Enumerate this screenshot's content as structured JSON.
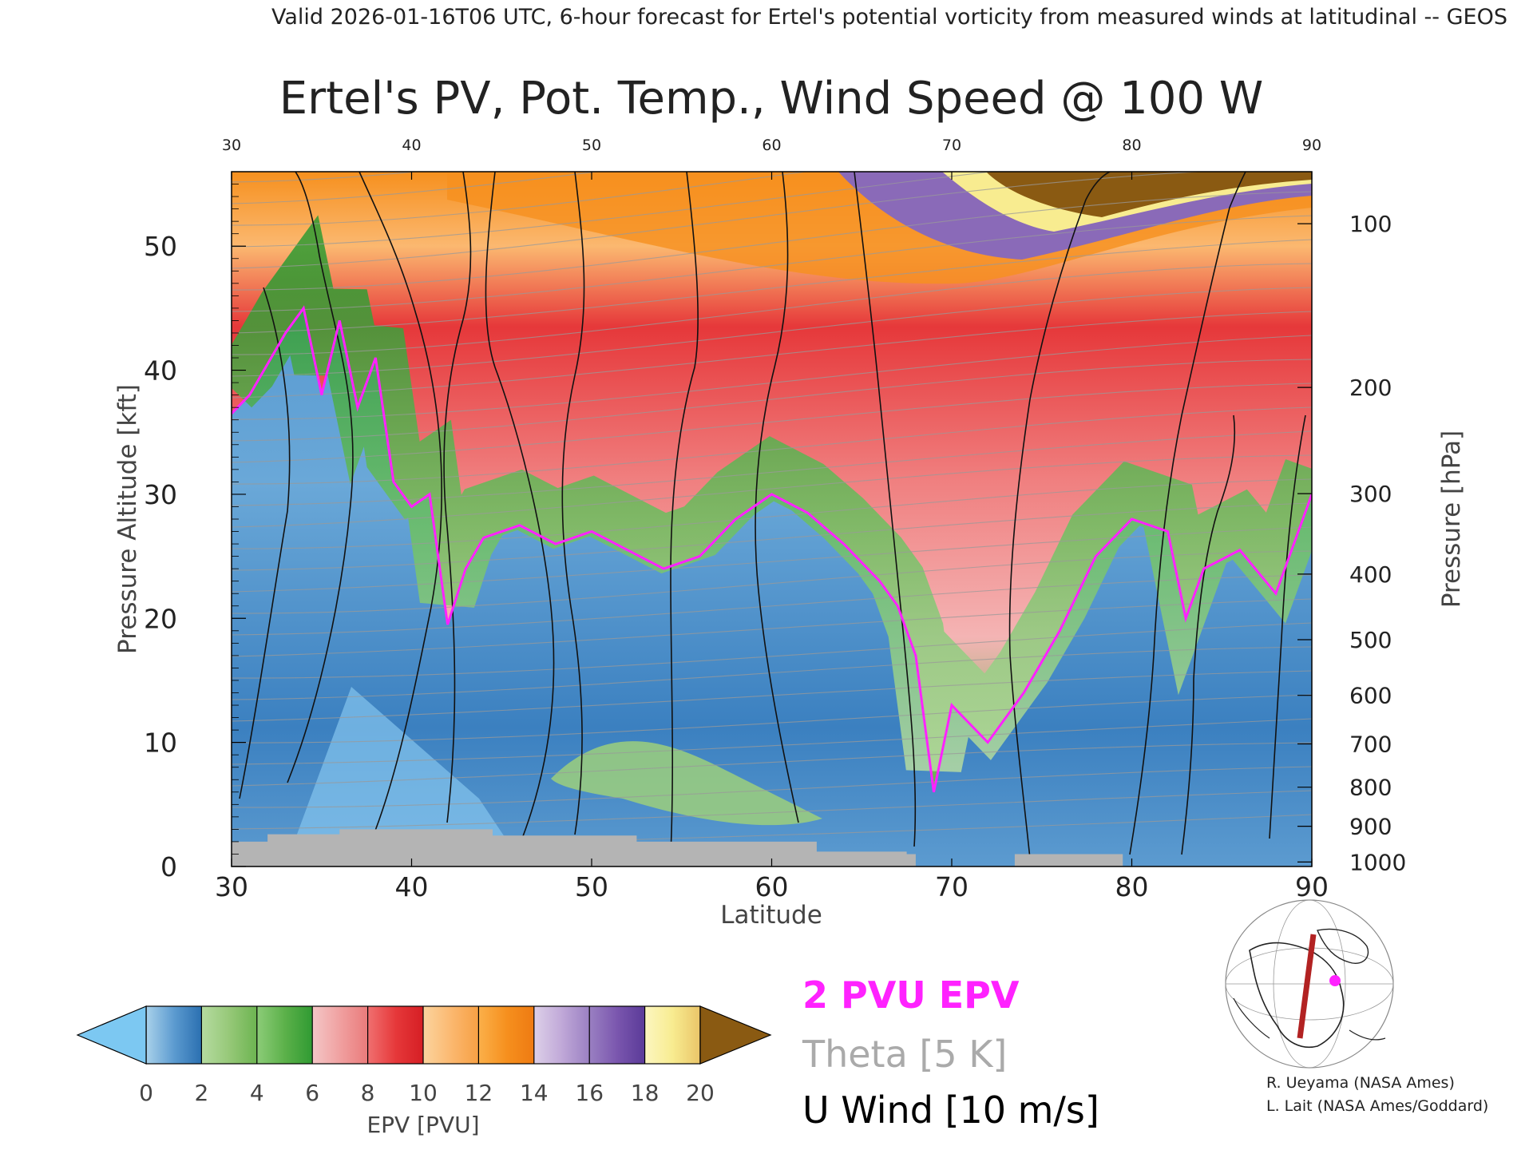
{
  "header": "Valid 2026-01-16T06 UTC, 6-hour forecast for Ertel's potential vorticity from measured winds at latitudinal -- GEOS",
  "chart_data": {
    "type": "heatmap",
    "title": "Ertel's PV, Pot. Temp., Wind Speed @ 100 W",
    "xlabel": "Latitude",
    "ylabel": "Pressure Altitude [kft]",
    "y2label": "Pressure [hPa]",
    "xlim": [
      30,
      90
    ],
    "ylim": [
      0,
      56
    ],
    "x_ticks": [
      30,
      40,
      50,
      60,
      70,
      80,
      90
    ],
    "x_tick_labels": [
      "30",
      "40",
      "50",
      "60",
      "70",
      "80",
      "90"
    ],
    "top_ticks": [
      "30",
      "40",
      "50",
      "60",
      "70",
      "80",
      "90"
    ],
    "y_ticks": [
      0,
      10,
      20,
      30,
      40,
      50
    ],
    "y_tick_labels": [
      "0",
      "10",
      "20",
      "30",
      "40",
      "50"
    ],
    "pressure_ticks": [
      {
        "hPa": 100,
        "label": "100"
      },
      {
        "hPa": 200,
        "label": "200"
      },
      {
        "hPa": 300,
        "label": "300"
      },
      {
        "hPa": 400,
        "label": "400"
      },
      {
        "hPa": 500,
        "label": "500"
      },
      {
        "hPa": 600,
        "label": "600"
      },
      {
        "hPa": 700,
        "label": "700"
      },
      {
        "hPa": 800,
        "label": "800"
      },
      {
        "hPa": 900,
        "label": "900"
      },
      {
        "hPa": 1000,
        "label": "1000"
      }
    ],
    "colorbar": {
      "label": "EPV [PVU]",
      "ticks": [
        {
          "value": 0,
          "label": "0"
        },
        {
          "value": 2,
          "label": "2"
        },
        {
          "value": 4,
          "label": "4"
        },
        {
          "value": 6,
          "label": "6"
        },
        {
          "value": 8,
          "label": "8"
        },
        {
          "value": 10,
          "label": "10"
        },
        {
          "value": 12,
          "label": "12"
        },
        {
          "value": 14,
          "label": "14"
        },
        {
          "value": 16,
          "label": "16"
        },
        {
          "value": 18,
          "label": "18"
        },
        {
          "value": 20,
          "label": "20"
        }
      ],
      "under_color": "#7cc8f2",
      "over_color": "#8a5a12",
      "bins": [
        {
          "from": 0,
          "to": 1,
          "c0": "#a9d1ea",
          "c1": "#5c9bd0"
        },
        {
          "from": 1,
          "to": 2,
          "c0": "#5c9bd0",
          "c1": "#2a6fb0"
        },
        {
          "from": 2,
          "to": 3,
          "c0": "#b5dba0",
          "c1": "#96c878"
        },
        {
          "from": 3,
          "to": 4,
          "c0": "#96c878",
          "c1": "#6cb450"
        },
        {
          "from": 4,
          "to": 5,
          "c0": "#8ccc78",
          "c1": "#5cb14a"
        },
        {
          "from": 5,
          "to": 6,
          "c0": "#5cb14a",
          "c1": "#2f9a32"
        },
        {
          "from": 6,
          "to": 7,
          "c0": "#f4c6c6",
          "c1": "#f0a0a0"
        },
        {
          "from": 7,
          "to": 8,
          "c0": "#f0a0a0",
          "c1": "#ea7a7a"
        },
        {
          "from": 8,
          "to": 9,
          "c0": "#f07070",
          "c1": "#e6383a"
        },
        {
          "from": 9,
          "to": 10,
          "c0": "#e6383a",
          "c1": "#d51e24"
        },
        {
          "from": 10,
          "to": 11,
          "c0": "#fbd49e",
          "c1": "#fbb870"
        },
        {
          "from": 11,
          "to": 12,
          "c0": "#fbb870",
          "c1": "#f7a043"
        },
        {
          "from": 12,
          "to": 13,
          "c0": "#fbb04a",
          "c1": "#f6901e"
        },
        {
          "from": 13,
          "to": 14,
          "c0": "#f6901e",
          "c1": "#ee7a12"
        },
        {
          "from": 14,
          "to": 15,
          "c0": "#ddd0e8",
          "c1": "#c0a8d8"
        },
        {
          "from": 15,
          "to": 16,
          "c0": "#c0a8d8",
          "c1": "#9a80c2"
        },
        {
          "from": 16,
          "to": 17,
          "c0": "#9a80c2",
          "c1": "#7a56ae"
        },
        {
          "from": 17,
          "to": 18,
          "c0": "#7a56ae",
          "c1": "#5a3a98"
        },
        {
          "from": 18,
          "to": 19,
          "c0": "#fcf6c0",
          "c1": "#f8ec90"
        },
        {
          "from": 19,
          "to": 20,
          "c0": "#f8ec90",
          "c1": "#eac468"
        }
      ]
    },
    "legend": [
      {
        "label": "2 PVU EPV",
        "color": "#ff22ff"
      },
      {
        "label": "Theta [5 K]",
        "color": "#aaaaaa"
      },
      {
        "label": "U Wind [10 m/s]",
        "color": "#000000"
      }
    ],
    "tropopause_2pvu_kft": [
      {
        "lat": 30,
        "kft": 36.5
      },
      {
        "lat": 31,
        "kft": 38
      },
      {
        "lat": 33,
        "kft": 43
      },
      {
        "lat": 34,
        "kft": 45
      },
      {
        "lat": 35,
        "kft": 38
      },
      {
        "lat": 36,
        "kft": 44
      },
      {
        "lat": 37,
        "kft": 37
      },
      {
        "lat": 38,
        "kft": 41
      },
      {
        "lat": 39,
        "kft": 31
      },
      {
        "lat": 40,
        "kft": 29
      },
      {
        "lat": 41,
        "kft": 30
      },
      {
        "lat": 42,
        "kft": 19.5
      },
      {
        "lat": 43,
        "kft": 24
      },
      {
        "lat": 44,
        "kft": 26.5
      },
      {
        "lat": 46,
        "kft": 27.5
      },
      {
        "lat": 48,
        "kft": 26
      },
      {
        "lat": 50,
        "kft": 27
      },
      {
        "lat": 52,
        "kft": 25.5
      },
      {
        "lat": 54,
        "kft": 24
      },
      {
        "lat": 56,
        "kft": 25
      },
      {
        "lat": 58,
        "kft": 28
      },
      {
        "lat": 60,
        "kft": 30
      },
      {
        "lat": 62,
        "kft": 28.5
      },
      {
        "lat": 64,
        "kft": 26
      },
      {
        "lat": 66,
        "kft": 23
      },
      {
        "lat": 67,
        "kft": 21
      },
      {
        "lat": 68,
        "kft": 17
      },
      {
        "lat": 69,
        "kft": 6
      },
      {
        "lat": 70,
        "kft": 13
      },
      {
        "lat": 72,
        "kft": 10
      },
      {
        "lat": 74,
        "kft": 14
      },
      {
        "lat": 76,
        "kft": 19
      },
      {
        "lat": 78,
        "kft": 25
      },
      {
        "lat": 80,
        "kft": 28
      },
      {
        "lat": 82,
        "kft": 27
      },
      {
        "lat": 83,
        "kft": 20
      },
      {
        "lat": 84,
        "kft": 24
      },
      {
        "lat": 86,
        "kft": 25.5
      },
      {
        "lat": 88,
        "kft": 22
      },
      {
        "lat": 90,
        "kft": 30
      }
    ]
  },
  "credits": [
    "R. Ueyama (NASA Ames)",
    "L. Lait (NASA Ames/Goddard)"
  ]
}
